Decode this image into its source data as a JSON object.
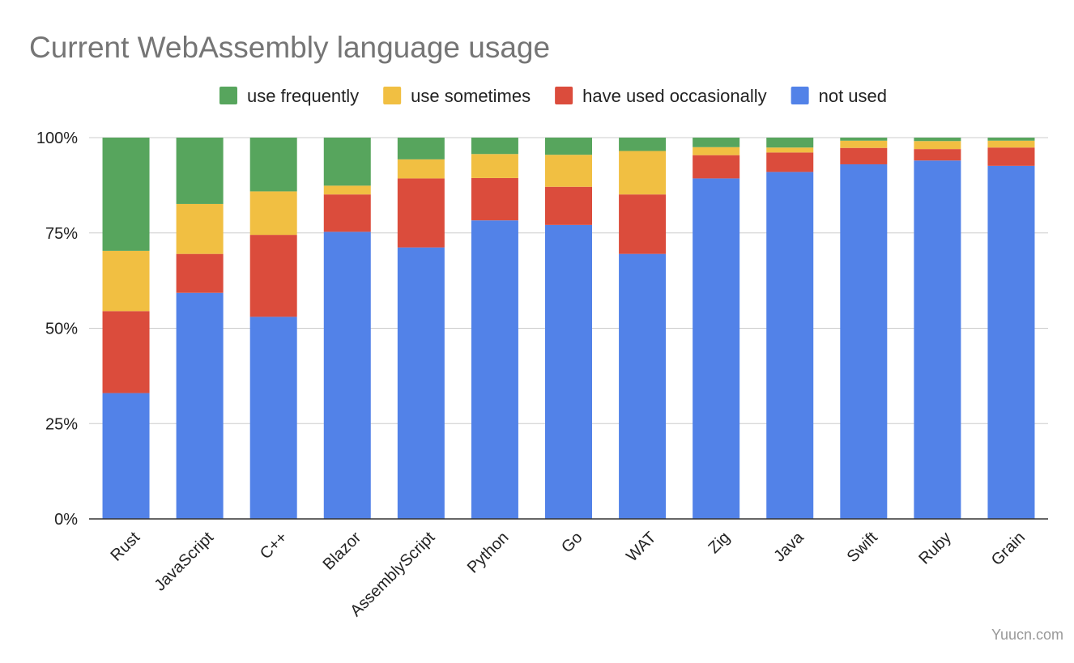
{
  "chart_data": {
    "type": "bar",
    "stacked": true,
    "normalized": true,
    "title": "Current WebAssembly language usage",
    "xlabel": "",
    "ylabel": "",
    "ylim": [
      0,
      100
    ],
    "y_ticks": [
      "0%",
      "25%",
      "50%",
      "75%",
      "100%"
    ],
    "y_tick_values": [
      0,
      25,
      50,
      75,
      100
    ],
    "grid": true,
    "legend_position": "top",
    "categories": [
      "Rust",
      "JavaScript",
      "C++",
      "Blazor",
      "AssemblyScript",
      "Python",
      "Go",
      "WAT",
      "Zig",
      "Java",
      "Swift",
      "Ruby",
      "Grain"
    ],
    "series": [
      {
        "name": "not used",
        "color": "#5282e8",
        "values": [
          33,
          59.3,
          53,
          75.3,
          71.2,
          78.3,
          77.1,
          69.5,
          89.3,
          91,
          93,
          94,
          92.6
        ]
      },
      {
        "name": "have used occasionally",
        "color": "#db4c3c",
        "values": [
          21.5,
          10.2,
          21.5,
          9.8,
          18.1,
          11.1,
          10,
          15.6,
          6.1,
          5.1,
          4.3,
          3,
          4.8
        ]
      },
      {
        "name": "use sometimes",
        "color": "#f1bf42",
        "values": [
          15.8,
          13.1,
          11.4,
          2.3,
          5,
          6.3,
          8.4,
          11.4,
          2.1,
          1.3,
          1.9,
          2.1,
          1.8
        ]
      },
      {
        "name": "use frequently",
        "color": "#57a55d",
        "values": [
          29.7,
          17.4,
          14.1,
          12.6,
          5.7,
          4.3,
          4.5,
          3.5,
          2.5,
          2.6,
          0.8,
          0.9,
          0.8
        ]
      }
    ],
    "legend_order": [
      "use frequently",
      "use sometimes",
      "have used occasionally",
      "not used"
    ]
  },
  "watermark": "Yuucn.com"
}
